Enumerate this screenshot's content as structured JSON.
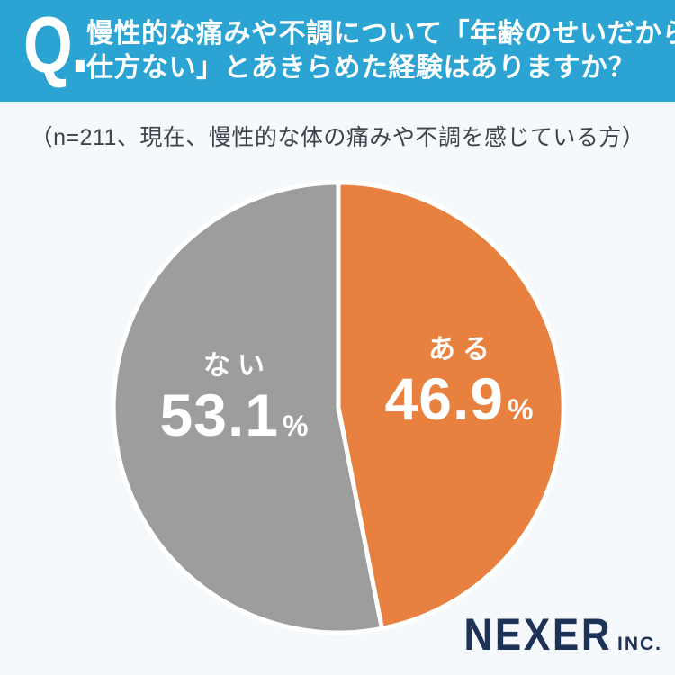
{
  "header": {
    "q_mark": "Q.",
    "title_line1": "慢性的な痛みや不調について「年齢のせいだから",
    "title_line2": "仕方ない」とあきらめた経験はありますか？"
  },
  "subtitle": "（n=211、現在、慢性的な体の痛みや不調を感じている方）",
  "footer": {
    "brand": "NEXER",
    "brand_suffix": "INC."
  },
  "colors": {
    "banner_blue": "#2BA4D3",
    "slice_orange": "#E8813F",
    "slice_gray": "#9D9D9D",
    "background": "#F5F9FB",
    "logo_navy": "#1C3357",
    "subtitle_text": "#3C434B",
    "slice_divider": "#FFFFFF"
  },
  "chart_data": {
    "type": "pie",
    "title": "慢性的な痛みや不調について「年齢のせいだから仕方ない」とあきらめた経験はありますか？",
    "sample_note": "n=211、現在、慢性的な体の痛みや不調を感じている方",
    "start_angle": "top",
    "direction": "clockwise",
    "unit": "%",
    "slices": [
      {
        "id": "aru",
        "label": "ある",
        "value": 46.9,
        "display": "46.9",
        "color": "#E8813F"
      },
      {
        "id": "nai",
        "label": "ない",
        "value": 53.1,
        "display": "53.1",
        "color": "#9D9D9D"
      }
    ]
  }
}
